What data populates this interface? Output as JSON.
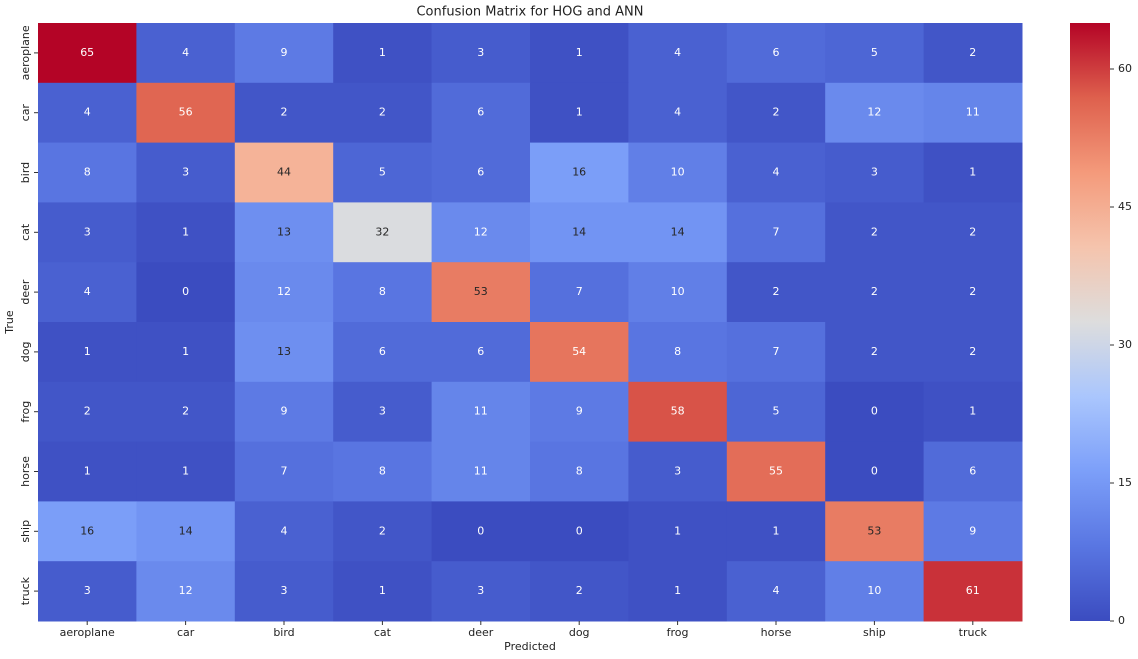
{
  "chart_data": {
    "type": "heatmap",
    "title": "Confusion Matrix for HOG and ANN",
    "xlabel": "Predicted",
    "ylabel": "True",
    "x_categories": [
      "aeroplane",
      "car",
      "bird",
      "cat",
      "deer",
      "dog",
      "frog",
      "horse",
      "ship",
      "truck"
    ],
    "y_categories": [
      "aeroplane",
      "car",
      "bird",
      "cat",
      "deer",
      "dog",
      "frog",
      "horse",
      "ship",
      "truck"
    ],
    "values": [
      [
        65,
        4,
        9,
        1,
        3,
        1,
        4,
        6,
        5,
        2
      ],
      [
        4,
        56,
        2,
        2,
        6,
        1,
        4,
        2,
        12,
        11
      ],
      [
        8,
        3,
        44,
        5,
        6,
        16,
        10,
        4,
        3,
        1
      ],
      [
        3,
        1,
        13,
        32,
        12,
        14,
        14,
        7,
        2,
        2
      ],
      [
        4,
        0,
        12,
        8,
        53,
        7,
        10,
        2,
        2,
        2
      ],
      [
        1,
        1,
        13,
        6,
        6,
        54,
        8,
        7,
        2,
        2
      ],
      [
        2,
        2,
        9,
        3,
        11,
        9,
        58,
        5,
        0,
        1
      ],
      [
        1,
        1,
        7,
        8,
        11,
        8,
        3,
        55,
        0,
        6
      ],
      [
        16,
        14,
        4,
        2,
        0,
        0,
        1,
        1,
        53,
        9
      ],
      [
        3,
        12,
        3,
        1,
        3,
        2,
        1,
        4,
        10,
        61
      ]
    ],
    "colormap": "coolwarm",
    "zlim": [
      0,
      65
    ],
    "zticks": [
      0,
      15,
      30,
      45,
      60
    ]
  }
}
